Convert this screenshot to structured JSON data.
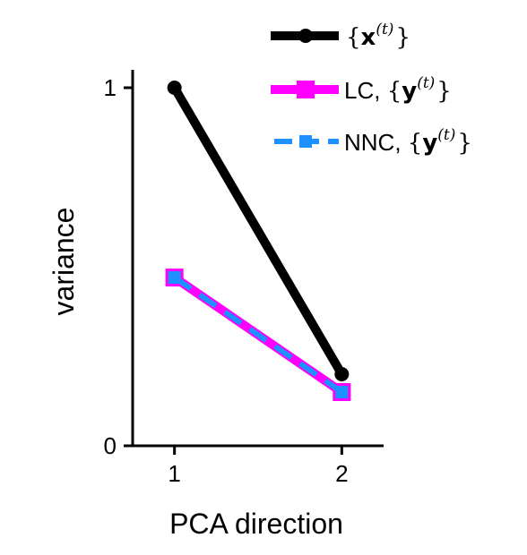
{
  "chart_data": {
    "type": "line",
    "title": "",
    "xlabel": "PCA direction",
    "ylabel": "variance",
    "x": [
      1,
      2
    ],
    "xlim": [
      0.75,
      2.25
    ],
    "ylim": [
      0,
      1.05
    ],
    "xticks": [
      "1",
      "2"
    ],
    "yticks": [
      "0",
      "1"
    ],
    "grid": false,
    "legend_position": "top-right",
    "series": [
      {
        "name_prefix": "",
        "name_symbol": "x",
        "name_superscript": "(t)",
        "values": [
          1.0,
          0.2
        ],
        "color": "#000000",
        "marker": "circle",
        "linestyle": "solid"
      },
      {
        "name_prefix": "LC, ",
        "name_symbol": "y",
        "name_superscript": "(t)",
        "values": [
          0.47,
          0.15
        ],
        "color": "#ff00ff",
        "marker": "square",
        "linestyle": "solid"
      },
      {
        "name_prefix": "NNC, ",
        "name_symbol": "y",
        "name_superscript": "(t)",
        "values": [
          0.47,
          0.15
        ],
        "color": "#1e90ff",
        "marker": "square",
        "linestyle": "dashed"
      }
    ]
  }
}
